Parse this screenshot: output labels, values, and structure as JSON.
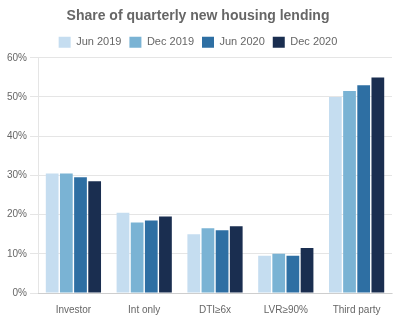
{
  "chart_data": {
    "type": "bar",
    "title": "Share of quarterly new housing lending",
    "categories": [
      "Investor",
      "Int only",
      "DTI≥6x",
      "LVR≥90%",
      "Third party"
    ],
    "series": [
      {
        "name": "Jun 2019",
        "color": "#c5ddf0",
        "values": [
          30.5,
          20.5,
          15.0,
          9.5,
          50.0
        ]
      },
      {
        "name": "Dec 2019",
        "color": "#7ab3d4",
        "values": [
          30.5,
          18.0,
          16.5,
          10.0,
          51.5
        ]
      },
      {
        "name": "Jun 2020",
        "color": "#2e6fa3",
        "values": [
          29.5,
          18.5,
          16.0,
          9.5,
          53.0
        ]
      },
      {
        "name": "Dec 2020",
        "color": "#1a2e50",
        "values": [
          28.5,
          19.5,
          17.0,
          11.5,
          55.0
        ]
      }
    ],
    "ylim": [
      0,
      60
    ],
    "yticks": [
      {
        "value": 0,
        "label": "0%"
      },
      {
        "value": 10,
        "label": "10%"
      },
      {
        "value": 20,
        "label": "20%"
      },
      {
        "value": 30,
        "label": "30%"
      },
      {
        "value": 40,
        "label": "40%"
      },
      {
        "value": 50,
        "label": "50%"
      },
      {
        "value": 60,
        "label": "60%"
      }
    ],
    "grid": true,
    "legend": "top"
  }
}
